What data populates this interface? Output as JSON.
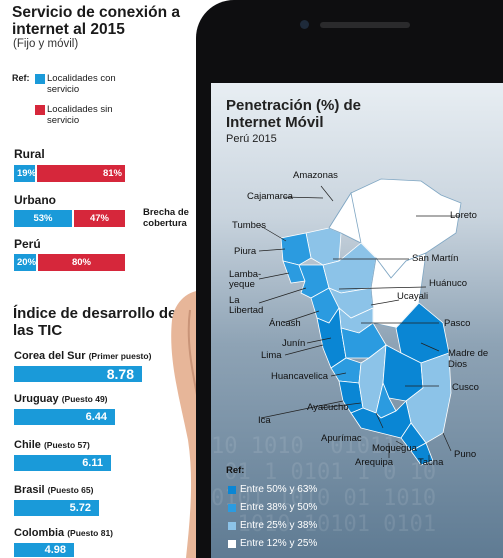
{
  "header": {
    "title": "Servicio de conexión a internet al 2015",
    "subtitle": "(Fijo y móvil)"
  },
  "legend": {
    "ref_label": "Ref:",
    "items": [
      {
        "label": "Localidades con servicio",
        "color": "#1a9ad9"
      },
      {
        "label": "Localidades sin servicio",
        "color": "#d6273b"
      }
    ]
  },
  "coverage": {
    "rows": [
      {
        "label": "Rural",
        "with_service": "19%",
        "without_service": "81%",
        "with_value": 19
      },
      {
        "label": "Urbano",
        "with_service": "53%",
        "without_service": "47%",
        "with_value": 53
      },
      {
        "label": "Perú",
        "with_service": "20%",
        "without_service": "80%",
        "with_value": 20
      }
    ],
    "gap_label": "Brecha de cobertura"
  },
  "tic": {
    "title": "Índice de desarrollo de las TIC",
    "rows": [
      {
        "country": "Corea del Sur",
        "rank": "(Primer puesto)",
        "value": "8.78",
        "index": 8.78
      },
      {
        "country": "Uruguay",
        "rank": "(Puesto 49)",
        "value": "6.44",
        "index": 6.44
      },
      {
        "country": "Chile",
        "rank": "(Puesto 57)",
        "value": "6.11",
        "index": 6.11
      },
      {
        "country": "Brasil",
        "rank": "(Puesto 65)",
        "value": "5.72",
        "index": 5.72
      },
      {
        "country": "Colombia",
        "rank": "(Puesto 81)",
        "value": "4.98",
        "index": 4.98
      }
    ]
  },
  "map": {
    "title": "Penetración (%) de Internet Móvil",
    "subtitle": "Perú 2015",
    "regions": {
      "amazonas": "Amazonas",
      "cajamarca": "Cajamarca",
      "loreto": "Loreto",
      "tumbes": "Tumbes",
      "piura": "Piura",
      "san_martin": "San Martín",
      "lambayeque": "Lamba- yeque",
      "huanuco": "Huánuco",
      "ucayali": "Ucayali",
      "la_libertad": "La Libertad",
      "ancash": "Áncash",
      "pasco": "Pasco",
      "junin": "Junín",
      "lima": "Lima",
      "madre_de_dios": "Madre de Dios",
      "huancavelica": "Huancavelica",
      "cusco": "Cusco",
      "ayacucho": "Ayacucho",
      "ica": "Ica",
      "apurimac": "Apurímac",
      "moquegua": "Moquegua",
      "puno": "Puno",
      "arequipa": "Arequipa",
      "tacna": "Tacna"
    },
    "legend_label": "Ref:",
    "legend": [
      {
        "label": "Entre 50% y 63%",
        "color": "#0a86d4"
      },
      {
        "label": "Entre 38% y 50%",
        "color": "#2b9be0"
      },
      {
        "label": "Entre 25% y 38%",
        "color": "#8cc3e8"
      },
      {
        "label": "Entre 12% y 25%",
        "color": "#ffffff"
      }
    ]
  }
}
